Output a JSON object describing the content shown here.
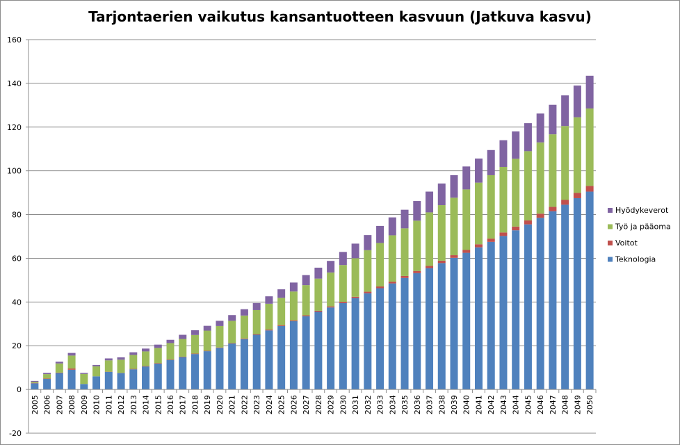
{
  "chart_data": {
    "type": "bar",
    "stacked": true,
    "title": "Tarjontaerien vaikutus kansantuotteen kasvuun (Jatkuva kasvu)",
    "xlabel": "",
    "ylabel": "",
    "ylim": [
      -20,
      160
    ],
    "yticks": [
      -20,
      0,
      20,
      40,
      60,
      80,
      100,
      120,
      140,
      160
    ],
    "grid": true,
    "legend_position": "right",
    "categories": [
      "2005",
      "2006",
      "2007",
      "2008",
      "2009",
      "2010",
      "2011",
      "2012",
      "2013",
      "2014",
      "2015",
      "2016",
      "2017",
      "2018",
      "2019",
      "2020",
      "2021",
      "2022",
      "2023",
      "2024",
      "2025",
      "2026",
      "2027",
      "2028",
      "2029",
      "2030",
      "2031",
      "2032",
      "2033",
      "2034",
      "2035",
      "2036",
      "2037",
      "2038",
      "2039",
      "2040",
      "2041",
      "2042",
      "2043",
      "2044",
      "2045",
      "2046",
      "2047",
      "2048",
      "2049",
      "2050"
    ],
    "series": [
      {
        "name": "Teknologia",
        "color": "#4f81bd",
        "values": [
          2.8,
          4.8,
          7.5,
          9.0,
          2.5,
          6.0,
          8.0,
          7.5,
          9.2,
          10.5,
          11.8,
          13.5,
          14.8,
          16.2,
          17.5,
          19.0,
          21.0,
          23.0,
          25.0,
          27.0,
          29.0,
          31.2,
          33.5,
          35.5,
          37.5,
          39.5,
          41.8,
          44.0,
          46.3,
          48.5,
          51.0,
          53.2,
          55.5,
          57.8,
          60.2,
          62.5,
          65.0,
          67.5,
          70.2,
          72.8,
          75.5,
          78.5,
          81.5,
          84.5,
          87.5,
          90.5
        ]
      },
      {
        "name": "Voitot",
        "color": "#c0504d",
        "values": [
          0.2,
          0.2,
          0.2,
          0.6,
          0.0,
          0.0,
          0.1,
          0.1,
          0.2,
          0.2,
          0.2,
          0.2,
          0.2,
          0.2,
          0.2,
          0.2,
          0.2,
          0.3,
          0.3,
          0.4,
          0.4,
          0.4,
          0.4,
          0.5,
          0.5,
          0.6,
          0.6,
          0.7,
          0.8,
          0.8,
          0.9,
          1.0,
          1.0,
          1.1,
          1.2,
          1.3,
          1.4,
          1.5,
          1.6,
          1.7,
          1.8,
          1.9,
          2.0,
          2.2,
          2.4,
          2.6
        ]
      },
      {
        "name": "Työ ja pääoma",
        "color": "#9bbb59",
        "values": [
          0.5,
          2.0,
          4.2,
          5.9,
          4.6,
          4.6,
          5.2,
          6.0,
          6.4,
          6.7,
          7.0,
          7.5,
          8.1,
          8.5,
          9.2,
          9.8,
          10.2,
          10.5,
          11.0,
          11.8,
          12.5,
          13.2,
          13.8,
          14.7,
          15.5,
          16.8,
          17.6,
          19.0,
          19.9,
          21.2,
          21.8,
          23.0,
          24.5,
          25.4,
          26.3,
          27.7,
          28.2,
          29.0,
          30.0,
          31.0,
          31.7,
          32.6,
          33.2,
          33.8,
          34.6,
          35.4
        ]
      },
      {
        "name": "Hyödykeverot",
        "color": "#8064a2",
        "values": [
          0.4,
          0.6,
          0.8,
          1.2,
          0.5,
          0.6,
          0.9,
          1.1,
          1.2,
          1.3,
          1.5,
          1.5,
          1.9,
          2.2,
          2.2,
          2.4,
          2.6,
          2.9,
          3.2,
          3.4,
          3.9,
          4.1,
          4.6,
          5.0,
          5.3,
          6.0,
          6.7,
          6.9,
          7.8,
          8.2,
          8.5,
          9.0,
          9.5,
          9.9,
          10.3,
          10.5,
          11.0,
          11.5,
          12.2,
          12.5,
          12.8,
          13.2,
          13.5,
          14.0,
          14.5,
          15.0
        ]
      }
    ],
    "legend_order": [
      "Hyödykeverot",
      "Työ ja pääoma",
      "Voitot",
      "Teknologia"
    ]
  }
}
